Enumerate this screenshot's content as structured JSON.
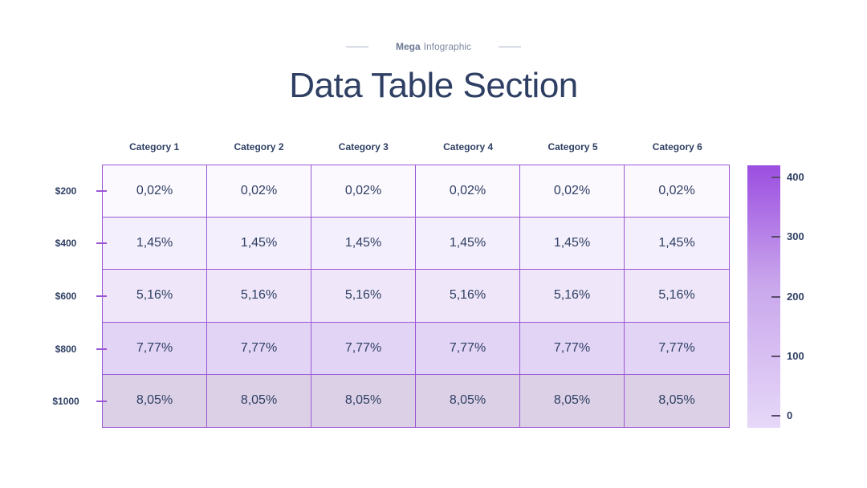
{
  "header": {
    "eyebrow_bold": "Mega",
    "eyebrow_rest": "Infographic",
    "title": "Data Table Section"
  },
  "chart_data": {
    "type": "heatmap",
    "title": "Data Table Section",
    "columns": [
      "Category 1",
      "Category 2",
      "Category 3",
      "Category 4",
      "Category 5",
      "Category 6"
    ],
    "rows": [
      "$200",
      "$400",
      "$600",
      "$800",
      "$1000"
    ],
    "values": [
      [
        "0,02%",
        "0,02%",
        "0,02%",
        "0,02%",
        "0,02%",
        "0,02%"
      ],
      [
        "1,45%",
        "1,45%",
        "1,45%",
        "1,45%",
        "1,45%",
        "1,45%"
      ],
      [
        "5,16%",
        "5,16%",
        "5,16%",
        "5,16%",
        "5,16%",
        "5,16%"
      ],
      [
        "7,77%",
        "7,77%",
        "7,77%",
        "7,77%",
        "7,77%",
        "7,77%"
      ],
      [
        "8,05%",
        "8,05%",
        "8,05%",
        "8,05%",
        "8,05%",
        "8,05%"
      ]
    ],
    "row_colors": [
      "#fbf8fe",
      "#f4effc",
      "#efe7f9",
      "#e2d4f5",
      "#dcd0e6"
    ],
    "colorbar": {
      "ticks": [
        "400",
        "300",
        "200",
        "100",
        "0"
      ],
      "colors": [
        "#9b4ee0",
        "#e6d8f8"
      ]
    },
    "grid_line_color": "#9b57d3"
  }
}
